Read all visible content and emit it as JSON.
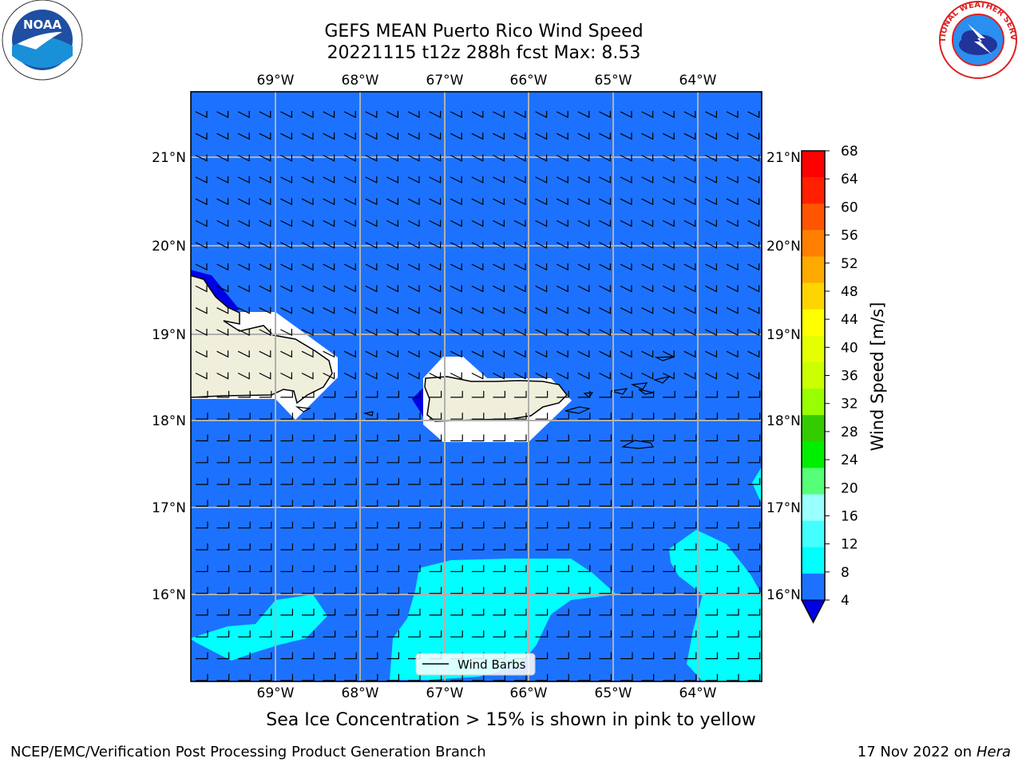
{
  "header": {
    "title_line1": "GEFS MEAN Puerto Rico Wind Speed",
    "title_line2": "20221115 t12z 288h fcst   Max: 8.53"
  },
  "logos": {
    "left": "noaa-logo",
    "left_text": "NOAA",
    "right": "national-weather-service-logo",
    "right_text": "NATIONAL WEATHER SERVICE"
  },
  "map": {
    "lon_labels": [
      "69°W",
      "68°W",
      "67°W",
      "66°W",
      "65°W",
      "64°W"
    ],
    "lat_labels": [
      "21°N",
      "20°N",
      "19°N",
      "18°N",
      "17°N",
      "16°N"
    ],
    "legend_label": "Wind Barbs",
    "colors": {
      "ocean": "#1c72ff",
      "light_cyan": "#00ffff",
      "land": "#efefdc",
      "deep_blue": "#0000e6"
    }
  },
  "colorbar": {
    "label": "Wind Speed [m/s]",
    "ticks": [
      "68",
      "64",
      "60",
      "56",
      "52",
      "48",
      "44",
      "40",
      "36",
      "32",
      "28",
      "24",
      "20",
      "16",
      "12",
      "8",
      "4"
    ],
    "colors": [
      "#ff0000",
      "#ff2000",
      "#ff5500",
      "#ff8000",
      "#ffaa00",
      "#ffd500",
      "#ffff00",
      "#e6ff00",
      "#ccff00",
      "#99ff00",
      "#33cc00",
      "#00ee00",
      "#55ff77",
      "#99ffff",
      "#44ffff",
      "#00ffff",
      "#1c72ff"
    ]
  },
  "footer": {
    "note": "Sea Ice Concentration > 15% is shown in pink to yellow",
    "left": "NCEP/EMC/Verification Post Processing Product Generation Branch",
    "right_date": "17 Nov 2022 on",
    "right_machine": "Hera"
  }
}
